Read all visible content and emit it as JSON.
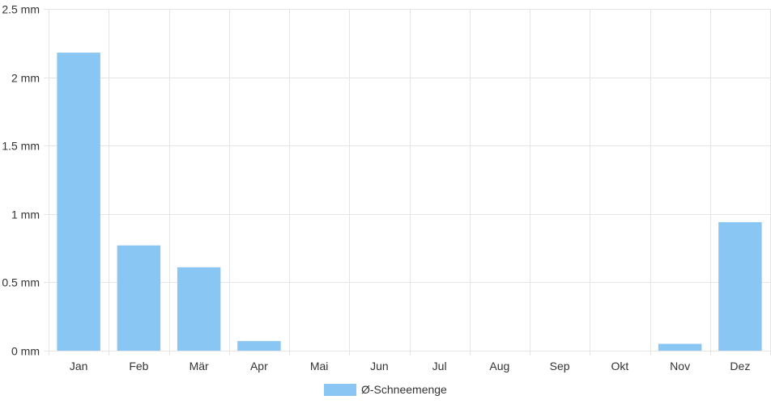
{
  "chart_data": {
    "type": "bar",
    "categories": [
      "Jan",
      "Feb",
      "Mär",
      "Apr",
      "Mai",
      "Jun",
      "Jul",
      "Aug",
      "Sep",
      "Okt",
      "Nov",
      "Dez"
    ],
    "series": [
      {
        "name": "Ø-Schneemenge",
        "values": [
          2.18,
          0.77,
          0.61,
          0.07,
          0,
          0,
          0,
          0,
          0,
          0,
          0.05,
          0.94
        ],
        "color": "#89c6f3"
      }
    ],
    "ylim": [
      0,
      2.5
    ],
    "yticks": [
      0,
      0.5,
      1,
      1.5,
      2,
      2.5
    ],
    "ytick_labels": [
      "0 mm",
      "0.5 mm",
      "1 mm",
      "1.5 mm",
      "2 mm",
      "2.5 mm"
    ],
    "grid": true,
    "legend_position": "bottom-center",
    "gridline_color": "#e5e5e5"
  }
}
